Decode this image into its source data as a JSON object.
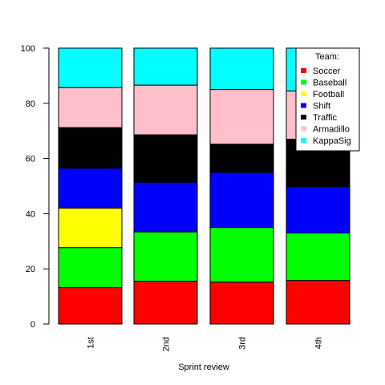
{
  "chart_data": {
    "type": "bar",
    "stacked": true,
    "title": "",
    "xlabel": "Sprint review",
    "ylabel": "",
    "ylim": [
      0,
      100
    ],
    "yticks": [
      "0",
      "20",
      "40",
      "60",
      "80",
      "100"
    ],
    "categories": [
      "1st",
      "2nd",
      "3rd",
      "4th"
    ],
    "legend": {
      "title": "Team:",
      "placement": "top-right"
    },
    "series": [
      {
        "name": "Soccer",
        "color": "#ff0000",
        "values": [
          13.2,
          15.5,
          15.2,
          15.8
        ]
      },
      {
        "name": "Baseball",
        "color": "#00ff00",
        "values": [
          14.5,
          17.9,
          19.8,
          17.2
        ]
      },
      {
        "name": "Football",
        "color": "#ffff00",
        "values": [
          14.3,
          0,
          0,
          0
        ]
      },
      {
        "name": "Shift",
        "color": "#0000ff",
        "values": [
          14.5,
          18.0,
          20.0,
          16.8
        ]
      },
      {
        "name": "Traffic",
        "color": "#000000",
        "values": [
          14.7,
          17.2,
          10.2,
          17.2
        ]
      },
      {
        "name": "Armadillo",
        "color": "#ffc0cb",
        "values": [
          14.5,
          18.0,
          19.8,
          17.5
        ]
      },
      {
        "name": "KappaSig",
        "color": "#00ffff",
        "values": [
          14.3,
          13.4,
          15.0,
          15.5
        ]
      }
    ]
  }
}
